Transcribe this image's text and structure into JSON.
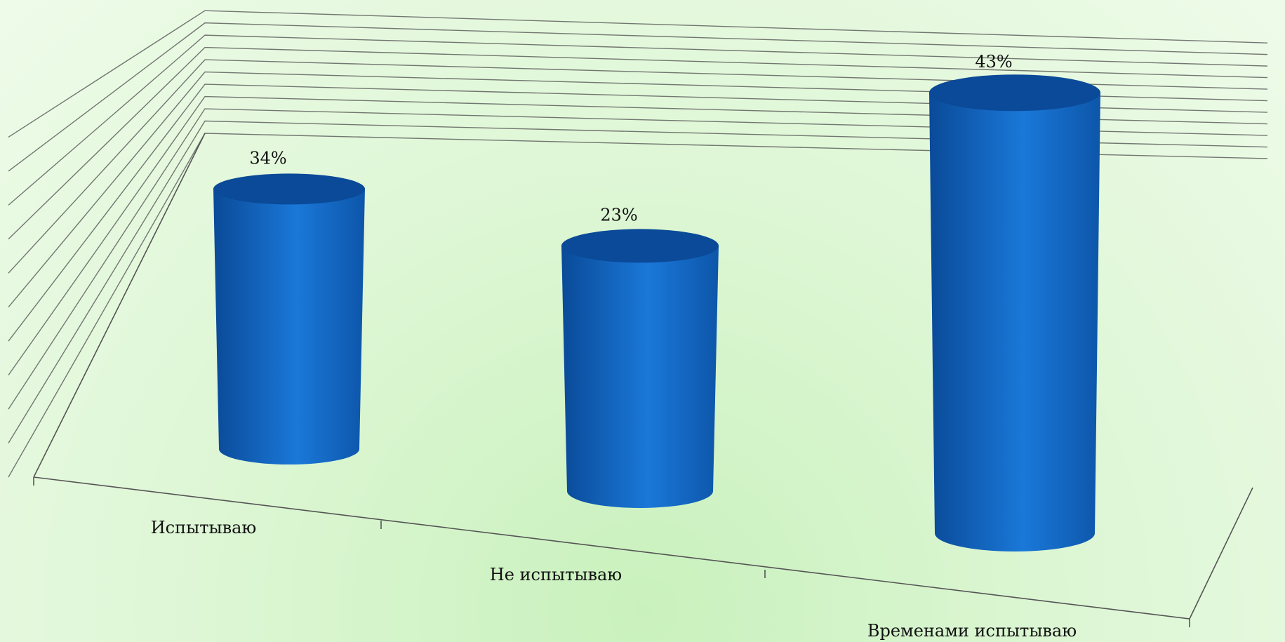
{
  "chart_data": {
    "type": "bar",
    "style": "3d-cylinder",
    "categories": [
      "Испытываю",
      "Не испытываю",
      "Временами испытываю"
    ],
    "values": [
      34,
      23,
      43
    ],
    "value_labels": [
      "34%",
      "23%",
      "43%"
    ],
    "ylim": [
      0,
      50
    ],
    "gridlines": true,
    "legend": "none",
    "colors": {
      "bar": "#1467c4",
      "bar_dark": "#0a4a98",
      "bar_light": "#2a86e0",
      "grid": "#555555",
      "background": "#dcf6d3"
    }
  }
}
